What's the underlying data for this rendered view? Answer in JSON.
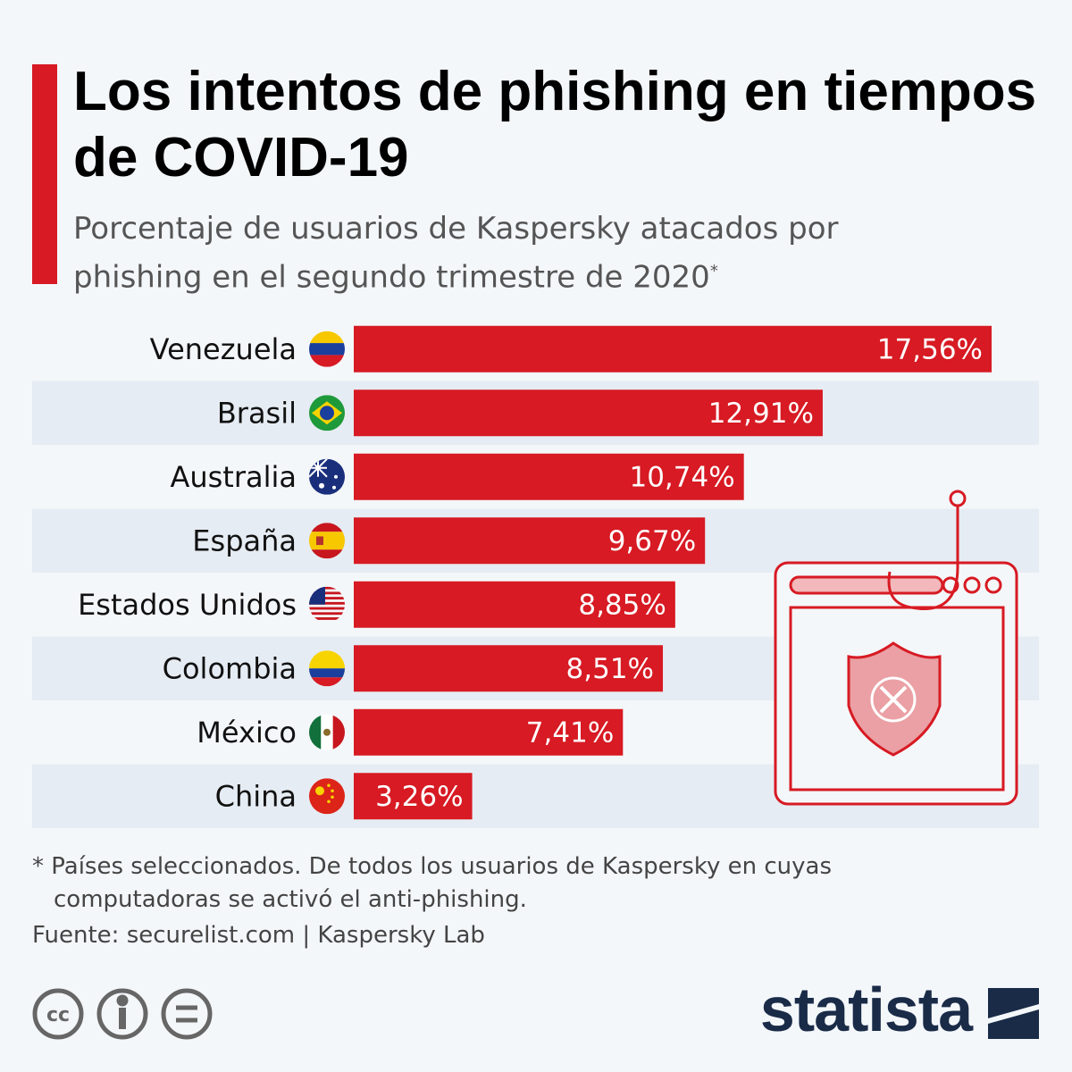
{
  "chart_data": {
    "type": "bar",
    "title": "Los intentos de phishing en tiempos de COVID-19",
    "subtitle": "Porcentaje de usuarios de Kaspersky atacados por phishing en el segundo trimestre de 2020",
    "subtitle_mark": "*",
    "categories": [
      "Venezuela",
      "Brasil",
      "Australia",
      "España",
      "Estados Unidos",
      "Colombia",
      "México",
      "China"
    ],
    "values": [
      17.56,
      12.91,
      10.74,
      9.67,
      8.85,
      8.51,
      7.41,
      3.26
    ],
    "value_labels": [
      "17,56%",
      "12,91%",
      "10,74%",
      "9,67%",
      "8,85%",
      "8,51%",
      "7,41%",
      "3,26%"
    ],
    "color": "#d71a23",
    "footnote": "* Países seleccionados. De todos los usuarios de Kaspersky en cuyas computadoras se activó el anti-phishing.",
    "source": "Fuente: securelist.com | Kaspersky Lab"
  },
  "brand": "statista"
}
